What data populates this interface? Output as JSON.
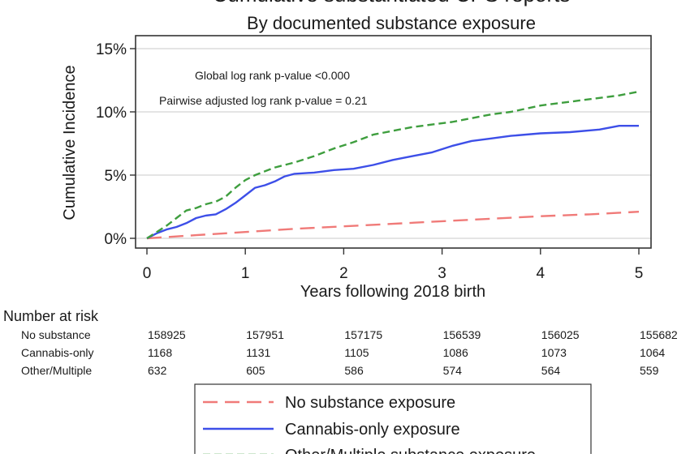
{
  "chart_data": {
    "type": "line",
    "title": "Cumulative substantiated CPS reports",
    "subtitle": "By documented substance exposure",
    "xlabel": "Years following 2018 birth",
    "ylabel": "Cumulative Incidence",
    "xlim": [
      0,
      5
    ],
    "ylim": [
      0,
      15
    ],
    "x_ticks": [
      0,
      1,
      2,
      3,
      4,
      5
    ],
    "x_tick_labels": [
      "0",
      "1",
      "2",
      "3",
      "4",
      "5"
    ],
    "y_ticks": [
      0,
      5,
      10,
      15
    ],
    "y_tick_labels": [
      "0%",
      "5%",
      "10%",
      "15%"
    ],
    "grid": "horizontal",
    "annotations": [
      "Global log rank p-value <0.000",
      "Pairwise adjusted log rank p-value = 0.21"
    ],
    "series": [
      {
        "name": "No substance exposure",
        "color": "#f07a78",
        "dash": "long-dash",
        "x": [
          0,
          0.5,
          1,
          1.5,
          2,
          2.5,
          3,
          3.5,
          4,
          4.5,
          5
        ],
        "y": [
          0,
          0.25,
          0.5,
          0.75,
          0.95,
          1.15,
          1.35,
          1.55,
          1.75,
          1.9,
          2.1
        ]
      },
      {
        "name": "Cannabis-only exposure",
        "color": "#3d4fe8",
        "dash": "solid",
        "x": [
          0,
          0.1,
          0.2,
          0.3,
          0.4,
          0.5,
          0.6,
          0.7,
          0.8,
          0.9,
          1.0,
          1.1,
          1.2,
          1.3,
          1.4,
          1.5,
          1.7,
          1.9,
          2.1,
          2.3,
          2.5,
          2.7,
          2.9,
          3.1,
          3.3,
          3.5,
          3.7,
          4.0,
          4.3,
          4.6,
          4.8,
          5.0
        ],
        "y": [
          0,
          0.4,
          0.7,
          0.9,
          1.2,
          1.6,
          1.8,
          1.9,
          2.3,
          2.8,
          3.4,
          4.0,
          4.2,
          4.5,
          4.9,
          5.1,
          5.2,
          5.4,
          5.5,
          5.8,
          6.2,
          6.5,
          6.8,
          7.3,
          7.7,
          7.9,
          8.1,
          8.3,
          8.4,
          8.6,
          8.9,
          8.9
        ]
      },
      {
        "name": "Other/Multiple substance exposure",
        "color": "#3e9e3e",
        "dash": "short-dash",
        "x": [
          0,
          0.1,
          0.2,
          0.3,
          0.4,
          0.5,
          0.6,
          0.7,
          0.8,
          0.9,
          1.0,
          1.1,
          1.2,
          1.3,
          1.4,
          1.5,
          1.7,
          1.9,
          2.1,
          2.3,
          2.5,
          2.7,
          2.9,
          3.1,
          3.3,
          3.5,
          3.7,
          4.0,
          4.3,
          4.6,
          4.8,
          5.0
        ],
        "y": [
          0,
          0.5,
          1.0,
          1.6,
          2.2,
          2.4,
          2.7,
          2.9,
          3.3,
          4.0,
          4.6,
          5.0,
          5.3,
          5.6,
          5.8,
          6.0,
          6.5,
          7.1,
          7.6,
          8.2,
          8.5,
          8.8,
          9.0,
          9.2,
          9.5,
          9.8,
          10.0,
          10.5,
          10.8,
          11.1,
          11.3,
          11.6
        ]
      }
    ],
    "risk_table": {
      "title": "Number at risk",
      "times": [
        0,
        1,
        2,
        3,
        4,
        5
      ],
      "rows": [
        {
          "label": "No substance",
          "values": [
            "158925",
            "157951",
            "157175",
            "156539",
            "156025",
            "155682"
          ]
        },
        {
          "label": "Cannabis-only",
          "values": [
            "1168",
            "1131",
            "1105",
            "1086",
            "1073",
            "1064"
          ]
        },
        {
          "label": "Other/Multiple",
          "values": [
            "632",
            "605",
            "586",
            "574",
            "564",
            "559"
          ]
        }
      ]
    },
    "legend": {
      "placement": "bottom-center",
      "entries": [
        "No substance exposure",
        "Cannabis-only exposure",
        "Other/Multiple substance exposure"
      ]
    }
  }
}
